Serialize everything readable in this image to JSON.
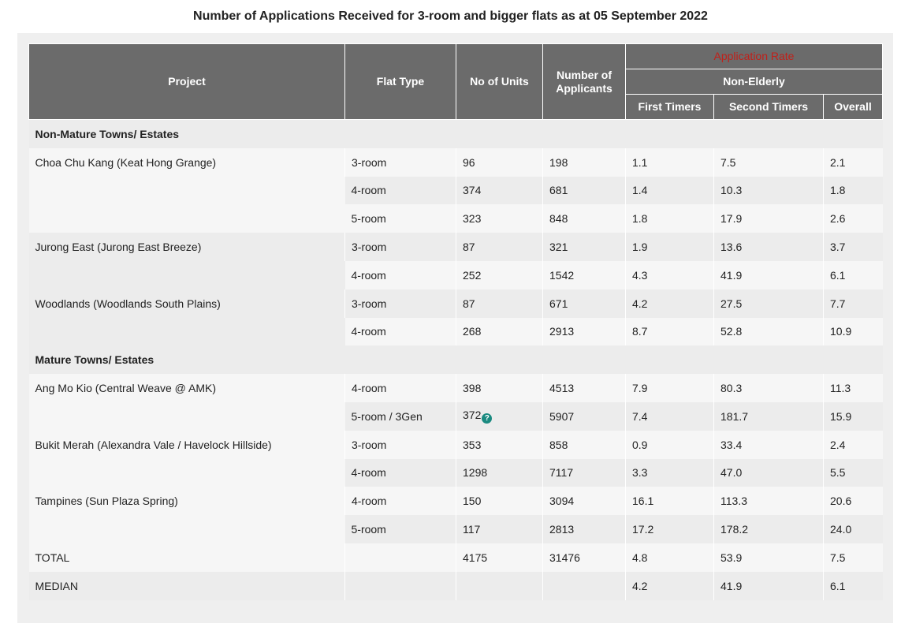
{
  "title": "Number of Applications Received for 3-room and bigger flats as at 05 September 2022",
  "colors": {
    "header_bg": "#6b6b6b",
    "application_rate_text": "#c0201a",
    "info_icon": "#1a8a80"
  },
  "headers": {
    "project": "Project",
    "flat_type": "Flat Type",
    "units": "No of Units",
    "applicants": "Number of Applicants",
    "application_rate": "Application Rate",
    "non_elderly": "Non-Elderly",
    "first_timers": "First Timers",
    "second_timers": "Second Timers",
    "overall": "Overall"
  },
  "sections": {
    "non_mature": "Non-Mature Towns/ Estates",
    "mature": "Mature Towns/ Estates"
  },
  "rows": [
    {
      "project": "Choa Chu Kang (Keat Hong Grange)",
      "flat": "3-room",
      "units": "96",
      "applicants": "198",
      "first": "1.1",
      "second": "7.5",
      "overall": "2.1"
    },
    {
      "flat": "4-room",
      "units": "374",
      "applicants": "681",
      "first": "1.4",
      "second": "10.3",
      "overall": "1.8"
    },
    {
      "flat": "5-room",
      "units": "323",
      "applicants": "848",
      "first": "1.8",
      "second": "17.9",
      "overall": "2.6"
    },
    {
      "project": "Jurong East (Jurong East Breeze)",
      "flat": "3-room",
      "units": "87",
      "applicants": "321",
      "first": "1.9",
      "second": "13.6",
      "overall": "3.7"
    },
    {
      "flat": "4-room",
      "units": "252",
      "applicants": "1542",
      "first": "4.3",
      "second": "41.9",
      "overall": "6.1"
    },
    {
      "project": "Woodlands (Woodlands South Plains)",
      "flat": "3-room",
      "units": "87",
      "applicants": "671",
      "first": "4.2",
      "second": "27.5",
      "overall": "7.7"
    },
    {
      "flat": "4-room",
      "units": "268",
      "applicants": "2913",
      "first": "8.7",
      "second": "52.8",
      "overall": "10.9"
    },
    {
      "project": "Ang Mo Kio (Central Weave @ AMK)",
      "flat": "4-room",
      "units": "398",
      "applicants": "4513",
      "first": "7.9",
      "second": "80.3",
      "overall": "11.3"
    },
    {
      "flat": "5-room / 3Gen",
      "units": "372",
      "applicants": "5907",
      "first": "7.4",
      "second": "181.7",
      "overall": "15.9"
    },
    {
      "project": "Bukit Merah (Alexandra Vale / Havelock Hillside)",
      "flat": "3-room",
      "units": "353",
      "applicants": "858",
      "first": "0.9",
      "second": "33.4",
      "overall": "2.4"
    },
    {
      "flat": "4-room",
      "units": "1298",
      "applicants": "7117",
      "first": "3.3",
      "second": "47.0",
      "overall": "5.5"
    },
    {
      "project": "Tampines (Sun Plaza Spring)",
      "flat": "4-room",
      "units": "150",
      "applicants": "3094",
      "first": "16.1",
      "second": "113.3",
      "overall": "20.6"
    },
    {
      "flat": "5-room",
      "units": "117",
      "applicants": "2813",
      "first": "17.2",
      "second": "178.2",
      "overall": "24.0"
    }
  ],
  "total": {
    "label": "TOTAL",
    "units": "4175",
    "applicants": "31476",
    "first": "4.8",
    "second": "53.9",
    "overall": "7.5"
  },
  "median": {
    "label": "MEDIAN",
    "first": "4.2",
    "second": "41.9",
    "overall": "6.1"
  }
}
